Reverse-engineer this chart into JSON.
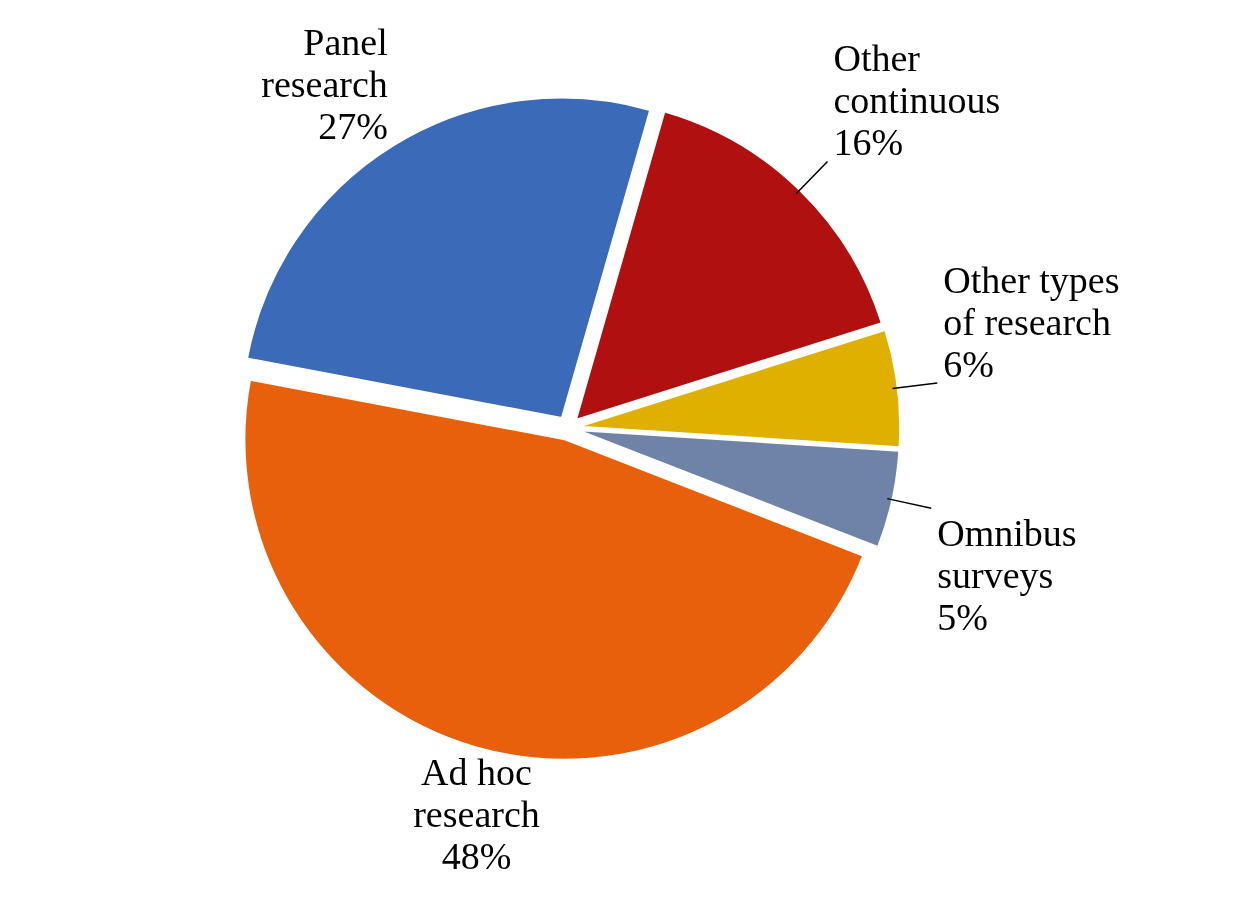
{
  "chart_data": {
    "type": "pie",
    "categories": [
      "Other continuous",
      "Other types of research",
      "Omnibus surveys",
      "Ad hoc research",
      "Panel research"
    ],
    "values": [
      16,
      6,
      5,
      48,
      27
    ],
    "value_labels": [
      "16%",
      "6%",
      "5%",
      "48%",
      "27%"
    ],
    "colors": [
      "#b01010",
      "#e0b000",
      "#6f82a8",
      "#e8600c",
      "#3a6ab8"
    ]
  }
}
